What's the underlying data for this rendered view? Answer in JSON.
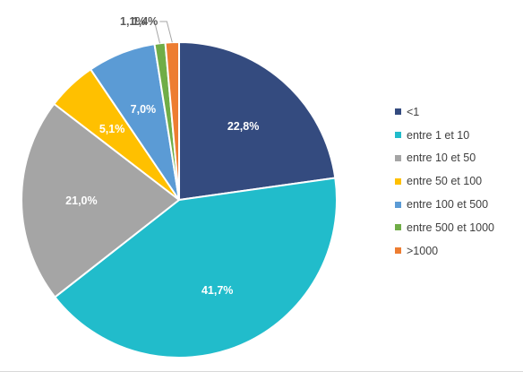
{
  "chart_data": {
    "type": "pie",
    "categories": [
      "<1",
      "entre 1 et 10",
      "entre 10 et 50",
      "entre 50 et 100",
      "entre 100 et 500",
      "entre 500 et 1000",
      ">1000"
    ],
    "values": [
      22.8,
      41.7,
      21.0,
      5.1,
      7.0,
      1.1,
      1.4
    ],
    "data_labels": [
      "22,8%",
      "41,7%",
      "21,0%",
      "5,1%",
      "7,0%",
      "1,1%",
      "1,4%"
    ],
    "colors": [
      "#344b7f",
      "#21bccb",
      "#a5a5a5",
      "#ffc000",
      "#5b9bd5",
      "#70ad47",
      "#ed7d31"
    ],
    "legend_position": "right",
    "start_angle_deg": 0,
    "direction": "clockwise"
  }
}
